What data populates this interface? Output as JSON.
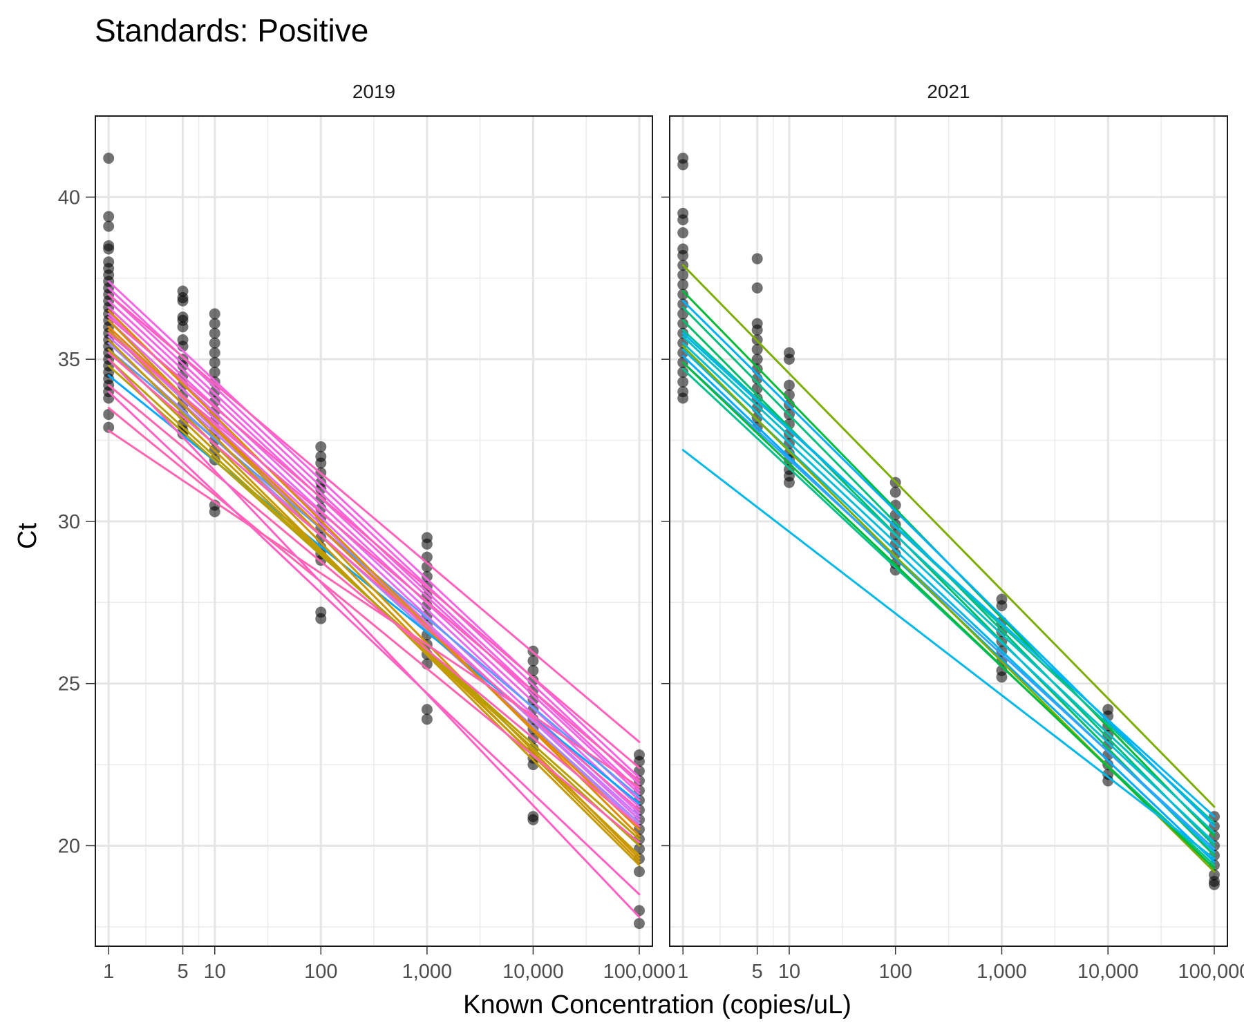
{
  "chart_data": {
    "type": "scatter",
    "title": "Standards: Positive",
    "xlabel": "Known Concentration (copies/uL)",
    "ylabel": "Ct",
    "x_scale": "log10",
    "x_ticks": [
      1,
      5,
      10,
      100,
      1000,
      10000,
      100000
    ],
    "x_tick_labels": [
      "1",
      "5",
      "10",
      "100",
      "1,000",
      "10,000",
      "100,000"
    ],
    "xlim": [
      0.75,
      133000
    ],
    "y_ticks": [
      20,
      25,
      30,
      35,
      40
    ],
    "y_tick_labels": [
      "20",
      "25",
      "30",
      "35",
      "40"
    ],
    "ylim": [
      16.9,
      42.5
    ],
    "grid": true,
    "legend": "none",
    "point_color": "#000000",
    "point_opacity": 0.55,
    "panels": [
      {
        "strip": "2019",
        "points": [
          {
            "x": 1,
            "y": [
              41.2,
              39.4,
              39.1,
              38.5,
              38.4,
              38.0,
              37.8,
              37.6,
              37.4,
              37.2,
              37.0,
              36.8,
              36.6,
              36.4,
              36.2,
              36.0,
              35.8,
              35.6,
              35.4,
              35.2,
              35.0,
              34.8,
              34.6,
              34.4,
              34.2,
              34.0,
              33.8,
              33.3,
              32.9
            ]
          },
          {
            "x": 5,
            "y": [
              37.1,
              36.9,
              36.8,
              36.3,
              36.2,
              36.0,
              35.6,
              35.4,
              35.0,
              34.8,
              34.5,
              34.2,
              33.9,
              33.6,
              33.3,
              33.0,
              32.8,
              32.7
            ]
          },
          {
            "x": 10,
            "y": [
              36.4,
              36.1,
              35.8,
              35.5,
              35.2,
              34.9,
              34.6,
              34.3,
              34.0,
              33.7,
              33.4,
              33.1,
              32.8,
              32.5,
              32.2,
              31.9,
              30.5,
              30.3
            ]
          },
          {
            "x": 100,
            "y": [
              32.3,
              32.0,
              31.8,
              31.5,
              31.2,
              31.0,
              30.7,
              30.4,
              30.1,
              29.8,
              29.5,
              29.2,
              29.0,
              28.8,
              27.2,
              27.0
            ]
          },
          {
            "x": 1000,
            "y": [
              29.5,
              29.3,
              28.9,
              28.6,
              28.3,
              28.0,
              27.7,
              27.4,
              27.1,
              26.8,
              26.5,
              26.2,
              25.9,
              25.6,
              24.2,
              23.9
            ]
          },
          {
            "x": 10000,
            "y": [
              26.0,
              25.7,
              25.4,
              25.1,
              24.8,
              24.5,
              24.2,
              23.9,
              23.6,
              23.3,
              23.0,
              22.7,
              22.5,
              20.9,
              20.8
            ]
          },
          {
            "x": 100000,
            "y": [
              22.8,
              22.6,
              22.3,
              22.0,
              21.7,
              21.4,
              21.1,
              20.8,
              20.5,
              20.2,
              19.9,
              19.6,
              19.2,
              18.0,
              17.6
            ]
          }
        ],
        "fits": [
          {
            "color": "#F564E3",
            "y1": 37.4,
            "y2": 22.1
          },
          {
            "color": "#F564E3",
            "y1": 37.2,
            "y2": 21.9
          },
          {
            "color": "#F564E3",
            "y1": 37.0,
            "y2": 21.7
          },
          {
            "color": "#F564E3",
            "y1": 36.8,
            "y2": 21.6
          },
          {
            "color": "#F564E3",
            "y1": 36.6,
            "y2": 21.4
          },
          {
            "color": "#E76BF3",
            "y1": 36.4,
            "y2": 21.2
          },
          {
            "color": "#E76BF3",
            "y1": 36.2,
            "y2": 21.0
          },
          {
            "color": "#E76BF3",
            "y1": 36.0,
            "y2": 20.8
          },
          {
            "color": "#C77CFF",
            "y1": 35.9,
            "y2": 20.6
          },
          {
            "color": "#C77CFF",
            "y1": 35.7,
            "y2": 20.9
          },
          {
            "color": "#A58AFF",
            "y1": 35.5,
            "y2": 20.7
          },
          {
            "color": "#619CFF",
            "y1": 35.3,
            "y2": 21.5
          },
          {
            "color": "#00A9FF",
            "y1": 34.5,
            "y2": 21.3
          },
          {
            "color": "#CD9600",
            "y1": 36.2,
            "y2": 19.6
          },
          {
            "color": "#CD9600",
            "y1": 35.9,
            "y2": 19.5
          },
          {
            "color": "#C49A00",
            "y1": 35.6,
            "y2": 19.4
          },
          {
            "color": "#C49A00",
            "y1": 35.3,
            "y2": 19.7
          },
          {
            "color": "#B79F00",
            "y1": 35.0,
            "y2": 20.0
          },
          {
            "color": "#B79F00",
            "y1": 34.8,
            "y2": 20.2
          },
          {
            "color": "#DE8C00",
            "y1": 36.5,
            "y2": 20.3
          },
          {
            "color": "#E38900",
            "y1": 36.0,
            "y2": 20.5
          },
          {
            "color": "#FF62BC",
            "y1": 37.0,
            "y2": 23.2
          },
          {
            "color": "#FF62BC",
            "y1": 36.3,
            "y2": 22.4
          },
          {
            "color": "#FF62BC",
            "y1": 35.8,
            "y2": 22.0
          },
          {
            "color": "#FF62BC",
            "y1": 35.2,
            "y2": 21.1
          },
          {
            "color": "#FF64B0",
            "y1": 34.2,
            "y2": 20.6
          },
          {
            "color": "#FF64B0",
            "y1": 33.5,
            "y2": 20.1
          },
          {
            "color": "#FF64B0",
            "y1": 32.8,
            "y2": 21.8
          },
          {
            "color": "#FF61C3",
            "y1": 34.0,
            "y2": 18.5
          },
          {
            "color": "#FF61C3",
            "y1": 35.0,
            "y2": 17.8
          }
        ]
      },
      {
        "strip": "2021",
        "points": [
          {
            "x": 1,
            "y": [
              41.2,
              41.0,
              39.5,
              39.3,
              38.9,
              38.4,
              38.2,
              37.9,
              37.6,
              37.3,
              37.0,
              36.7,
              36.4,
              36.1,
              35.8,
              35.5,
              35.2,
              34.9,
              34.6,
              34.3,
              34.0,
              33.8
            ]
          },
          {
            "x": 5,
            "y": [
              38.1,
              37.2,
              36.1,
              35.9,
              35.6,
              35.3,
              35.0,
              34.7,
              34.4,
              34.1,
              33.8,
              33.5,
              33.2,
              32.9
            ]
          },
          {
            "x": 10,
            "y": [
              35.2,
              35.0,
              34.2,
              33.9,
              33.6,
              33.3,
              33.0,
              32.7,
              32.4,
              32.1,
              31.9,
              31.6,
              31.4,
              31.2
            ]
          },
          {
            "x": 100,
            "y": [
              31.2,
              30.9,
              30.5,
              30.2,
              29.9,
              29.6,
              29.3,
              29.0,
              28.7,
              28.5
            ]
          },
          {
            "x": 1000,
            "y": [
              27.6,
              27.4,
              26.9,
              26.6,
              26.3,
              26.0,
              25.7,
              25.4,
              25.2
            ]
          },
          {
            "x": 10000,
            "y": [
              24.2,
              24.0,
              23.7,
              23.4,
              23.1,
              22.8,
              22.5,
              22.2,
              22.0
            ]
          },
          {
            "x": 100000,
            "y": [
              20.9,
              20.6,
              20.3,
              20.0,
              19.7,
              19.4,
              19.1,
              18.9,
              18.8
            ]
          }
        ],
        "fits": [
          {
            "color": "#7CAE00",
            "y1": 37.9,
            "y2": 21.2
          },
          {
            "color": "#00BA38",
            "y1": 37.1,
            "y2": 20.3
          },
          {
            "color": "#00BF7D",
            "y1": 36.6,
            "y2": 20.0
          },
          {
            "color": "#00BE67",
            "y1": 36.2,
            "y2": 19.7
          },
          {
            "color": "#00C19A",
            "y1": 35.9,
            "y2": 20.7
          },
          {
            "color": "#00BFC4",
            "y1": 35.7,
            "y2": 20.4
          },
          {
            "color": "#00BCD8",
            "y1": 35.5,
            "y2": 20.1
          },
          {
            "color": "#00B8E7",
            "y1": 35.3,
            "y2": 19.8
          },
          {
            "color": "#00B0F6",
            "y1": 36.8,
            "y2": 20.6
          },
          {
            "color": "#00A9FF",
            "y1": 35.1,
            "y2": 19.5
          },
          {
            "color": "#35A2FF",
            "y1": 34.9,
            "y2": 19.9
          },
          {
            "color": "#00C08B",
            "y1": 34.7,
            "y2": 19.4
          },
          {
            "color": "#00B4F0",
            "y1": 35.8,
            "y2": 20.9
          },
          {
            "color": "#7CAE00",
            "y1": 35.4,
            "y2": 19.2
          },
          {
            "color": "#00BA38",
            "y1": 34.9,
            "y2": 19.3
          },
          {
            "color": "#00B8E7",
            "y1": 32.2,
            "y2": 19.6
          }
        ]
      }
    ]
  }
}
